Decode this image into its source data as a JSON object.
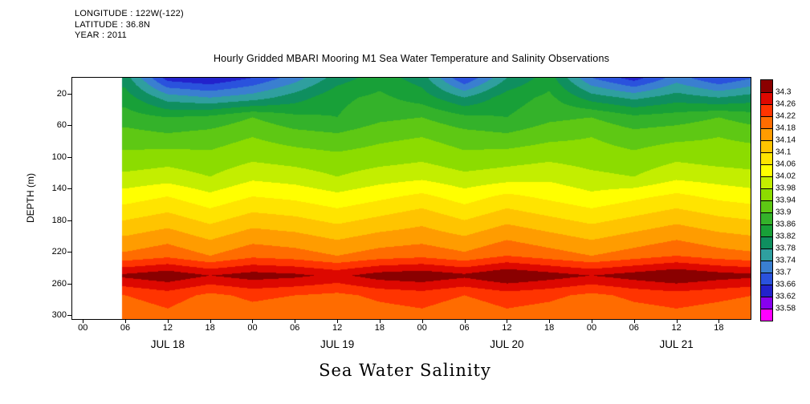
{
  "meta": {
    "longitude_label": "LONGITUDE : 122W(-122)",
    "latitude_label": "LATITUDE : 36.8N",
    "year_label": "YEAR : 2011"
  },
  "title": "Hourly Gridded MBARI Mooring M1 Sea Water Temperature and Salinity Observations",
  "bottom_title": "Sea Water Salinity",
  "y_axis": {
    "label": "DEPTH (m)",
    "ticks": [
      20,
      60,
      100,
      140,
      180,
      220,
      260,
      300
    ],
    "min": 0,
    "max": 305
  },
  "x_axis": {
    "hour_ticks": [
      "00",
      "06",
      "12",
      "18",
      "00",
      "06",
      "12",
      "18",
      "00",
      "06",
      "12",
      "18",
      "00",
      "06",
      "12",
      "18"
    ],
    "tick_hours": [
      0,
      6,
      12,
      18,
      24,
      30,
      36,
      42,
      48,
      54,
      60,
      66,
      72,
      78,
      84,
      90
    ],
    "day_labels": [
      "JUL 18",
      "JUL 19",
      "JUL 20",
      "JUL 21"
    ],
    "day_hours": [
      12,
      36,
      60,
      84
    ],
    "min_hour": -1.5,
    "max_hour": 94.5
  },
  "colorbar": {
    "labels": [
      "34.3",
      "34.26",
      "34.22",
      "34.18",
      "34.14",
      "34.1",
      "34.06",
      "34.02",
      "33.98",
      "33.94",
      "33.9",
      "33.86",
      "33.82",
      "33.78",
      "33.74",
      "33.7",
      "33.66",
      "33.62",
      "33.58"
    ]
  },
  "chart_data": {
    "type": "heatmap",
    "variable_title": "Sea Water Salinity",
    "levels_min": 33.58,
    "levels_max": 34.3,
    "level_step": 0.04,
    "missing_before_hour": 5.5,
    "palette_ascending": [
      "#ff00ff",
      "#8800ee",
      "#2222cc",
      "#2a52dd",
      "#3a7fd0",
      "#2f9f9f",
      "#0f8f5f",
      "#18a038",
      "#34b22a",
      "#5ec814",
      "#8cdc00",
      "#c3ee00",
      "#ffff00",
      "#ffe400",
      "#ffc400",
      "#ff9c00",
      "#ff6c00",
      "#ff3400",
      "#dd0800",
      "#8a0000"
    ],
    "time_hours": [
      6,
      12,
      18,
      24,
      30,
      36,
      42,
      48,
      54,
      60,
      66,
      72,
      78,
      84,
      90,
      95
    ],
    "depths_m": [
      0,
      25,
      50,
      75,
      100,
      125,
      150,
      175,
      200,
      225,
      250,
      275,
      300
    ],
    "salinity": [
      [
        33.8,
        33.64,
        33.62,
        33.66,
        33.72,
        33.8,
        33.84,
        33.8,
        33.66,
        33.78,
        33.84,
        33.7,
        33.64,
        33.72,
        33.66,
        33.7
      ],
      [
        33.84,
        33.76,
        33.74,
        33.76,
        33.8,
        33.85,
        33.87,
        33.84,
        33.78,
        33.84,
        33.87,
        33.8,
        33.77,
        33.8,
        33.78,
        33.8
      ],
      [
        33.88,
        33.86,
        33.87,
        33.9,
        33.87,
        33.86,
        33.89,
        33.9,
        33.87,
        33.86,
        33.89,
        33.9,
        33.87,
        33.88,
        33.9,
        33.88
      ],
      [
        33.92,
        33.91,
        33.92,
        33.94,
        33.92,
        33.91,
        33.93,
        33.94,
        33.92,
        33.91,
        33.93,
        33.94,
        33.92,
        33.93,
        33.94,
        33.93
      ],
      [
        33.95,
        33.96,
        33.95,
        33.97,
        33.96,
        33.95,
        33.96,
        33.97,
        33.95,
        33.96,
        33.97,
        33.96,
        33.95,
        33.97,
        33.96,
        33.96
      ],
      [
        33.99,
        34.0,
        33.98,
        34.01,
        34.0,
        33.98,
        34.0,
        34.01,
        33.99,
        34.0,
        34.01,
        33.99,
        33.98,
        34.01,
        34.0,
        33.99
      ],
      [
        34.04,
        34.06,
        34.03,
        34.06,
        34.05,
        34.03,
        34.05,
        34.07,
        34.04,
        34.07,
        34.05,
        34.03,
        34.05,
        34.07,
        34.05,
        34.04
      ],
      [
        34.09,
        34.11,
        34.08,
        34.11,
        34.1,
        34.08,
        34.1,
        34.12,
        34.09,
        34.12,
        34.1,
        34.08,
        34.1,
        34.12,
        34.1,
        34.09
      ],
      [
        34.14,
        34.16,
        34.13,
        34.16,
        34.15,
        34.13,
        34.15,
        34.16,
        34.14,
        34.17,
        34.15,
        34.13,
        34.15,
        34.17,
        34.15,
        34.14
      ],
      [
        34.19,
        34.21,
        34.18,
        34.21,
        34.2,
        34.18,
        34.2,
        34.21,
        34.19,
        34.22,
        34.2,
        34.18,
        34.2,
        34.22,
        34.2,
        34.19
      ],
      [
        34.31,
        34.33,
        34.3,
        34.32,
        34.31,
        34.29,
        34.32,
        34.33,
        34.31,
        34.34,
        34.32,
        34.3,
        34.32,
        34.34,
        34.32,
        34.31
      ],
      [
        34.22,
        34.24,
        34.21,
        34.23,
        34.22,
        34.21,
        34.23,
        34.24,
        34.22,
        34.24,
        34.23,
        34.21,
        34.23,
        34.24,
        34.23,
        34.22
      ],
      [
        34.19,
        34.21,
        34.18,
        34.2,
        34.19,
        34.18,
        34.2,
        34.21,
        34.19,
        34.21,
        34.2,
        34.18,
        34.2,
        34.21,
        34.2,
        34.19
      ]
    ]
  }
}
